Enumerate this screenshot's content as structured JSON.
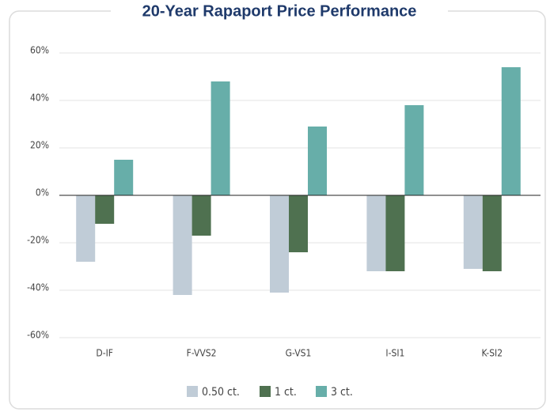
{
  "chart_data": {
    "type": "bar",
    "title": "20-Year Rapaport Price Performance",
    "categories": [
      "D-IF",
      "F-VVS2",
      "G-VS1",
      "I-SI1",
      "K-SI2"
    ],
    "series": [
      {
        "name": "0.50 ct.",
        "color": "#c0ccd7",
        "values": [
          -28,
          -42,
          -41,
          -32,
          -31
        ]
      },
      {
        "name": "1 ct.",
        "color": "#4f7150",
        "values": [
          -12,
          -17,
          -24,
          -32,
          -32
        ]
      },
      {
        "name": "3 ct.",
        "color": "#67aea9",
        "values": [
          15,
          48,
          29,
          38,
          54
        ]
      }
    ],
    "ylim": [
      -60,
      60
    ],
    "yticks": [
      {
        "value": -60,
        "label": "-60%"
      },
      {
        "value": -40,
        "label": "-40%"
      },
      {
        "value": -20,
        "label": "-20%"
      },
      {
        "value": 0,
        "label": "0%"
      },
      {
        "value": 20,
        "label": "20%"
      },
      {
        "value": 40,
        "label": "40%"
      },
      {
        "value": 60,
        "label": "60%"
      }
    ],
    "grid": true,
    "legend": "bottom"
  }
}
